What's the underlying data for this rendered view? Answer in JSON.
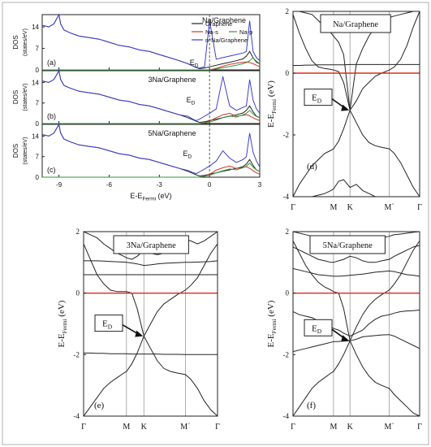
{
  "chart_data": [
    {
      "id": "dos",
      "type": "line",
      "panel_labels": [
        "(a)",
        "(b)",
        "(c)"
      ],
      "titles": [
        "Na/Graphene",
        "3Na/Graphene",
        "5Na/Graphene"
      ],
      "xlabel": "E-E",
      "xlabel_sub": "Fermi",
      "xlabel_unit": " (eV)",
      "ylabel": "DOS",
      "ylabel2": "(states/eV)",
      "xlim": [
        -10,
        3
      ],
      "xticks": [
        -9,
        -6,
        -3,
        0,
        3
      ],
      "ylim": [
        0,
        18
      ],
      "yticks": [
        0,
        7,
        14
      ],
      "ed_label": "E",
      "ed_sub": "D",
      "ed_positions": [
        -0.6,
        -0.8,
        -1.0
      ],
      "legend": [
        "Graphene",
        "Na-s",
        "Na-p",
        "n*Na/Graphene"
      ],
      "legend_colors": [
        "#222222",
        "#d0342c",
        "#2e9a3a",
        "#3b3fcf"
      ],
      "series_x": [
        -10,
        -9.6,
        -9.3,
        -9.1,
        -9.0,
        -8.9,
        -8.7,
        -8.3,
        -7.8,
        -7.2,
        -6.6,
        -6.0,
        -5.4,
        -4.8,
        -4.2,
        -3.6,
        -3.0,
        -2.4,
        -1.8,
        -1.3,
        -1.0,
        -0.8,
        -0.6,
        -0.3,
        0.0,
        0.4,
        0.8,
        1.2,
        1.6,
        2.0,
        2.2,
        2.4,
        2.6,
        2.8,
        3.0
      ],
      "series": [
        {
          "name": "Graphene",
          "panels": [
            [
              14.5,
              14,
              15,
              17,
              18,
              15,
              13,
              12,
              11,
              10.5,
              10,
              9,
              8,
              7.5,
              6.5,
              6,
              5,
              4,
              3,
              2,
              1.3,
              0.8,
              0.4,
              0.6,
              1,
              1.5,
              2,
              2.5,
              3,
              3.6,
              4.5,
              6,
              4,
              2.5,
              2
            ],
            [
              14.5,
              14,
              15,
              17,
              18,
              15,
              13,
              12,
              11,
              10.5,
              10,
              9,
              8,
              7.5,
              6.5,
              6,
              5,
              4,
              3,
              2,
              1.3,
              0.8,
              0.4,
              0.6,
              1,
              1.5,
              2,
              2.5,
              3,
              3.6,
              4.5,
              6,
              4,
              2.5,
              2
            ],
            [
              14.5,
              14,
              15,
              17,
              18,
              15,
              13,
              12,
              11,
              10.5,
              10,
              9,
              8,
              7.5,
              6.5,
              6,
              5,
              4,
              3,
              2,
              1.3,
              0.8,
              0.4,
              0.6,
              1,
              1.5,
              2,
              2.5,
              3,
              3.6,
              4.5,
              6,
              4,
              2.5,
              2
            ]
          ]
        },
        {
          "name": "Na-s",
          "panels": [
            [
              0,
              0,
              0,
              0,
              0,
              0,
              0,
              0,
              0,
              0,
              0,
              0,
              0,
              0,
              0,
              0,
              0,
              0,
              0,
              0,
              0,
              0,
              0,
              0,
              0,
              0.5,
              1.2,
              1.8,
              2.2,
              2.5,
              2.6,
              2.4,
              2,
              1.5,
              1
            ],
            [
              0,
              0,
              0,
              0,
              0,
              0,
              0,
              0,
              0,
              0,
              0,
              0,
              0,
              0,
              0,
              0,
              0,
              0,
              0,
              0,
              0,
              0,
              0,
              0.3,
              0.8,
              2,
              3,
              3.5,
              2.5,
              2.8,
              3,
              2.6,
              2,
              1.4,
              1
            ],
            [
              0,
              0,
              0,
              0,
              0,
              0,
              0,
              0,
              0,
              0,
              0,
              0,
              0,
              0,
              0,
              0,
              0,
              0,
              0,
              0,
              0,
              0,
              0,
              0.4,
              1,
              2.4,
              3.2,
              3.8,
              3,
              3.3,
              3.6,
              3,
              2.2,
              1.5,
              1
            ]
          ]
        },
        {
          "name": "Na-p",
          "panels": [
            [
              0,
              0,
              0,
              0,
              0,
              0,
              0,
              0,
              0,
              0,
              0,
              0,
              0,
              0,
              0,
              0,
              0,
              0,
              0,
              0,
              0,
              0,
              0,
              0,
              0,
              0.3,
              0.7,
              1.1,
              1.5,
              2,
              2.4,
              3,
              4,
              2.8,
              2
            ],
            [
              0,
              0,
              0,
              0,
              0,
              0,
              0,
              0,
              0,
              0,
              0,
              0,
              0,
              0,
              0,
              0,
              0,
              0,
              0,
              0,
              0,
              0,
              0,
              0.2,
              0.5,
              1.2,
              2,
              2.6,
              2.2,
              3,
              3.5,
              4.5,
              3.2,
              2.4,
              2
            ],
            [
              0,
              0,
              0,
              0,
              0,
              0,
              0,
              0,
              0,
              0,
              0,
              0,
              0,
              0,
              0,
              0,
              0,
              0,
              0,
              0,
              0,
              0,
              0,
              0.3,
              0.6,
              1.5,
              2.2,
              2.8,
              2.5,
              3.2,
              3.8,
              4.8,
              3.4,
              2.5,
              2
            ]
          ]
        },
        {
          "name": "n*Na/Graphene",
          "panels": [
            [
              14.5,
              14,
              15,
              17,
              18,
              15,
              13,
              12,
              11,
              10.5,
              10,
              9,
              8,
              7.5,
              6.5,
              6,
              5,
              4,
              3,
              2,
              1.3,
              0.8,
              0.6,
              1,
              16,
              3.5,
              4,
              4.5,
              5,
              5.5,
              6,
              16,
              6,
              4,
              3
            ],
            [
              14.5,
              14,
              15,
              17,
              18,
              15,
              13,
              12,
              11,
              10.5,
              10,
              9,
              8,
              7.5,
              6.5,
              6,
              5,
              4,
              3,
              2.5,
              1.5,
              1,
              1.5,
              2.5,
              3.5,
              5,
              16,
              6,
              4.5,
              5.5,
              6,
              15,
              8,
              5,
              3.5
            ],
            [
              14.5,
              14,
              15,
              17,
              18,
              15,
              13,
              12,
              11,
              10.5,
              10,
              9,
              8,
              7.5,
              6.5,
              6,
              5,
              4,
              3,
              2.3,
              1.6,
              1.2,
              1.8,
              2.8,
              3.8,
              5.5,
              9,
              6.5,
              5,
              6,
              7,
              15,
              8.5,
              5.5,
              3.5
            ]
          ]
        }
      ]
    },
    {
      "id": "bands",
      "type": "line",
      "panel_labels": [
        "(d)",
        "(e)",
        "(f)"
      ],
      "titles": [
        "Na/Graphene",
        "3Na/Graphene",
        "5Na/Graphene"
      ],
      "ylabel": "E-E",
      "ylabel_sub": "Fermi",
      "ylabel_unit": " (eV)",
      "ylim": [
        -4,
        2
      ],
      "yticks": [
        -4,
        -2,
        0,
        2
      ],
      "kpoints": [
        "Γ",
        "M",
        "K",
        "M´",
        "Γ"
      ],
      "kpos": [
        0,
        0.32,
        0.45,
        0.76,
        1.0
      ],
      "ed_label": "E",
      "ed_sub": "D",
      "ed_energy": [
        -1.2,
        -1.4,
        -1.55
      ],
      "band_k": [
        0,
        0.05,
        0.1,
        0.15,
        0.2,
        0.25,
        0.3,
        0.32,
        0.36,
        0.4,
        0.45,
        0.5,
        0.55,
        0.6,
        0.65,
        0.7,
        0.76,
        0.8,
        0.85,
        0.9,
        0.95,
        1.0
      ],
      "bands": [
        [
          [
            1.9,
            1.3,
            0.8,
            0.4,
            0.2,
            0.15,
            0.12,
            0.1,
            0.05,
            -0.3,
            -1.2,
            -0.9,
            -0.5,
            -0.3,
            -0.1,
            0.0,
            0.1,
            0.2,
            0.45,
            0.9,
            1.5,
            2.0
          ],
          [
            -4.0,
            -3.6,
            -3.3,
            -3.0,
            -2.8,
            -2.6,
            -2.5,
            -2.45,
            -2.2,
            -1.8,
            -1.2,
            -1.6,
            -2.0,
            -2.25,
            -2.35,
            -2.4,
            -2.45,
            -2.6,
            -2.9,
            -3.3,
            -3.7,
            -4.0
          ],
          [
            0.25,
            0.25,
            0.26,
            0.26,
            0.27,
            0.27,
            0.27,
            0.27,
            0.27,
            0.27,
            0.28,
            0.28,
            0.28,
            0.28,
            0.28,
            0.28,
            0.28,
            0.28,
            0.28,
            0.28,
            0.28,
            0.28
          ],
          [
            2.0,
            2.0,
            1.95,
            1.9,
            1.7,
            1.5,
            1.3,
            1.2,
            1.0,
            0.6,
            -1.2,
            0.3,
            0.8,
            1.2,
            1.5,
            1.7,
            1.8,
            1.85,
            1.9,
            1.95,
            2.0,
            2.0
          ],
          [
            -4.0,
            -4.0,
            -4.0,
            -4.0,
            -3.95,
            -3.9,
            -3.8,
            -3.75,
            -3.5,
            -3.45,
            -3.7,
            -3.6,
            -3.8,
            -3.9,
            -4.0,
            -4.0,
            -4.0,
            -4.0,
            -4.0,
            -4.0,
            -4.0,
            -4.0
          ]
        ],
        [
          [
            1.6,
            1.1,
            0.6,
            0.3,
            0.1,
            0.05,
            0.05,
            0.05,
            0.0,
            -0.5,
            -1.4,
            -1.0,
            -0.6,
            -0.35,
            -0.2,
            -0.05,
            0.1,
            0.25,
            0.5,
            0.9,
            1.3,
            1.6
          ],
          [
            -4.0,
            -3.7,
            -3.4,
            -3.1,
            -2.9,
            -2.75,
            -2.6,
            -2.55,
            -2.3,
            -1.95,
            -1.4,
            -1.8,
            -2.2,
            -2.45,
            -2.55,
            -2.6,
            -2.65,
            -2.8,
            -3.1,
            -3.5,
            -3.8,
            -4.0
          ],
          [
            -1.95,
            -1.95,
            -1.96,
            -1.96,
            -1.97,
            -1.97,
            -1.97,
            -1.97,
            -1.98,
            -1.98,
            -1.98,
            -1.98,
            -1.98,
            -1.99,
            -1.99,
            -1.99,
            -2.0,
            -2.0,
            -2.0,
            -2.0,
            -2.0,
            -2.0
          ],
          [
            1.05,
            1.05,
            1.05,
            1.04,
            1.03,
            1.02,
            1.01,
            1.0,
            0.98,
            0.95,
            0.9,
            0.92,
            0.95,
            0.97,
            0.98,
            0.99,
            1.0,
            1.0,
            1.01,
            1.02,
            1.03,
            1.05
          ],
          [
            0.6,
            0.6,
            0.6,
            0.6,
            0.6,
            0.6,
            0.6,
            0.6,
            0.6,
            0.6,
            0.6,
            0.6,
            0.6,
            0.6,
            0.6,
            0.6,
            0.6,
            0.6,
            0.6,
            0.6,
            0.6,
            0.6
          ],
          [
            2.0,
            1.9,
            1.8,
            1.6,
            1.45,
            1.3,
            1.2,
            1.15,
            1.1,
            1.2,
            1.4,
            1.3,
            1.25,
            1.3,
            1.45,
            1.6,
            1.75,
            1.7,
            1.6,
            1.7,
            1.85,
            2.0
          ]
        ],
        [
          [
            1.7,
            1.3,
            0.9,
            0.6,
            0.35,
            0.2,
            0.1,
            0.05,
            0.0,
            -0.5,
            -1.55,
            -1.1,
            -0.7,
            -0.4,
            -0.2,
            -0.05,
            0.1,
            0.3,
            0.6,
            1.0,
            1.4,
            1.7
          ],
          [
            -4.0,
            -3.7,
            -3.4,
            -3.1,
            -2.9,
            -2.75,
            -2.6,
            -2.55,
            -2.3,
            -2.0,
            -1.55,
            -2.0,
            -2.4,
            -2.7,
            -2.9,
            -3.0,
            -3.1,
            -3.3,
            -3.5,
            -3.7,
            -3.9,
            -4.0
          ],
          [
            -1.9,
            -1.85,
            -1.8,
            -1.75,
            -1.7,
            -1.65,
            -1.6,
            -1.58,
            -1.57,
            -1.56,
            -1.55,
            -1.5,
            -1.42,
            -1.4,
            -1.38,
            -1.36,
            -1.35,
            -1.4,
            -1.5,
            -1.6,
            -1.7,
            -1.8
          ],
          [
            -0.6,
            -0.7,
            -0.75,
            -0.8,
            -0.9,
            -1.0,
            -1.1,
            -1.15,
            -1.2,
            -1.3,
            -1.4,
            -1.3,
            -1.2,
            -1.0,
            -0.85,
            -0.75,
            -0.7,
            -0.65,
            -0.6,
            -0.58,
            -0.57,
            -0.55
          ],
          [
            0.8,
            0.75,
            0.7,
            0.65,
            0.6,
            0.58,
            0.56,
            0.55,
            0.55,
            0.56,
            0.58,
            0.6,
            0.62,
            0.65,
            0.68,
            0.7,
            0.72,
            0.7,
            0.65,
            0.6,
            0.58,
            0.55
          ],
          [
            1.5,
            1.4,
            1.3,
            1.2,
            1.1,
            1.05,
            1.0,
            1.0,
            1.05,
            1.1,
            1.2,
            1.15,
            1.05,
            1.0,
            1.0,
            1.05,
            1.1,
            1.2,
            1.3,
            1.4,
            1.5,
            1.55
          ],
          [
            2.0,
            1.95,
            1.9,
            1.85,
            1.8,
            1.7,
            1.6,
            1.55,
            1.5,
            1.45,
            1.4,
            1.45,
            1.5,
            1.6,
            1.7,
            1.8,
            1.85,
            1.9,
            1.92,
            1.95,
            1.98,
            2.0
          ]
        ]
      ]
    }
  ]
}
